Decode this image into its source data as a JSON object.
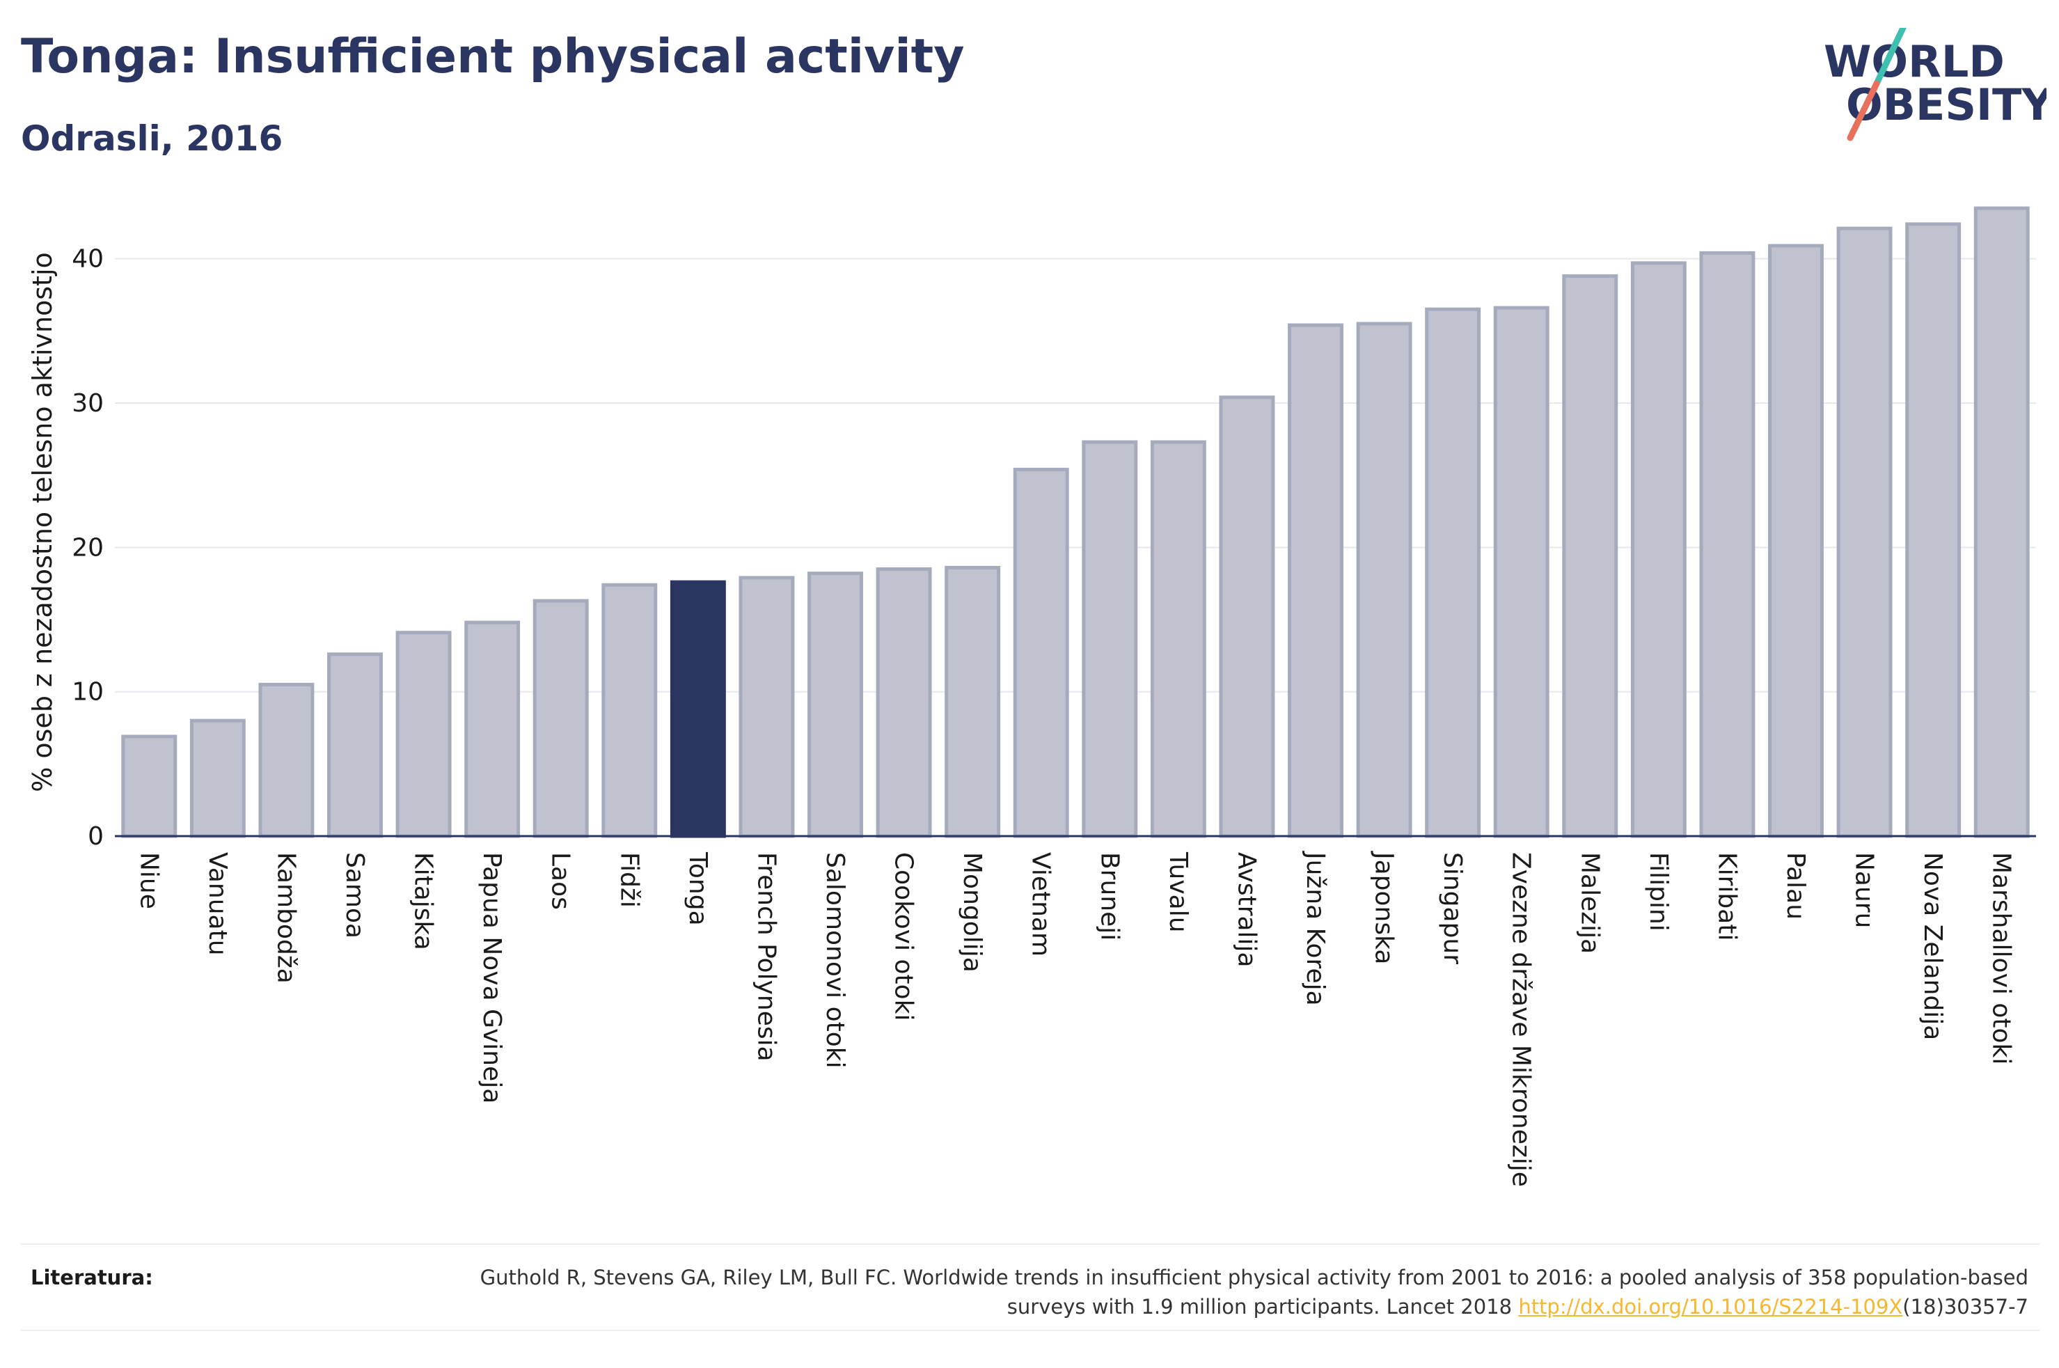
{
  "header": {
    "title": "Tonga: Insufficient physical activity",
    "subtitle": "Odrasli, 2016"
  },
  "logo": {
    "line1": "WORLD",
    "line2": "OBESITY",
    "icon": "world-obesity-slash-logo"
  },
  "chart_data": {
    "type": "bar",
    "categories": [
      "Niue",
      "Vanuatu",
      "Kambodža",
      "Samoa",
      "Kitajska",
      "Papua Nova Gvineja",
      "Laos",
      "Fidži",
      "Tonga",
      "French Polynesia",
      "Salomonovi otoki",
      "Cookovi otoki",
      "Mongolija",
      "Vietnam",
      "Bruneji",
      "Tuvalu",
      "Avstralija",
      "Južna Koreja",
      "Japonska",
      "Singapur",
      "Zvezne države Mikronezije",
      "Malezija",
      "Filipini",
      "Kiribati",
      "Palau",
      "Nauru",
      "Nova Zelandija",
      "Marshallovi otoki"
    ],
    "values": [
      6.9,
      8.0,
      10.5,
      12.6,
      14.1,
      14.8,
      16.3,
      17.4,
      17.6,
      17.9,
      18.2,
      18.5,
      18.6,
      25.4,
      27.3,
      27.3,
      30.4,
      35.4,
      35.5,
      36.5,
      36.6,
      38.8,
      39.7,
      40.4,
      40.9,
      42.1,
      42.4,
      43.5
    ],
    "highlight": "Tonga",
    "ylabel": "% oseb z nezadostno telesno aktivnostjo",
    "xlabel": "",
    "ylim": [
      0,
      45
    ],
    "yticks": [
      0,
      10,
      20,
      30,
      40
    ],
    "grid": true,
    "colors": {
      "bar": "#c0c3cf",
      "bar_edge": "#a5aabd",
      "highlight": "#2a3562",
      "grid": "#e8e8ee",
      "axis": "#2a3562"
    }
  },
  "footer": {
    "label": "Literatura:",
    "text_before_link": "Guthold R, Stevens GA, Riley LM, Bull FC. Worldwide trends in insufficient physical activity from 2001 to 2016: a pooled analysis of 358 population-based surveys with 1.9 million participants. Lancet 2018 ",
    "link": "http://dx.doi.org/10.1016/S2214-109X",
    "text_after_link": "(18)30357-7"
  }
}
